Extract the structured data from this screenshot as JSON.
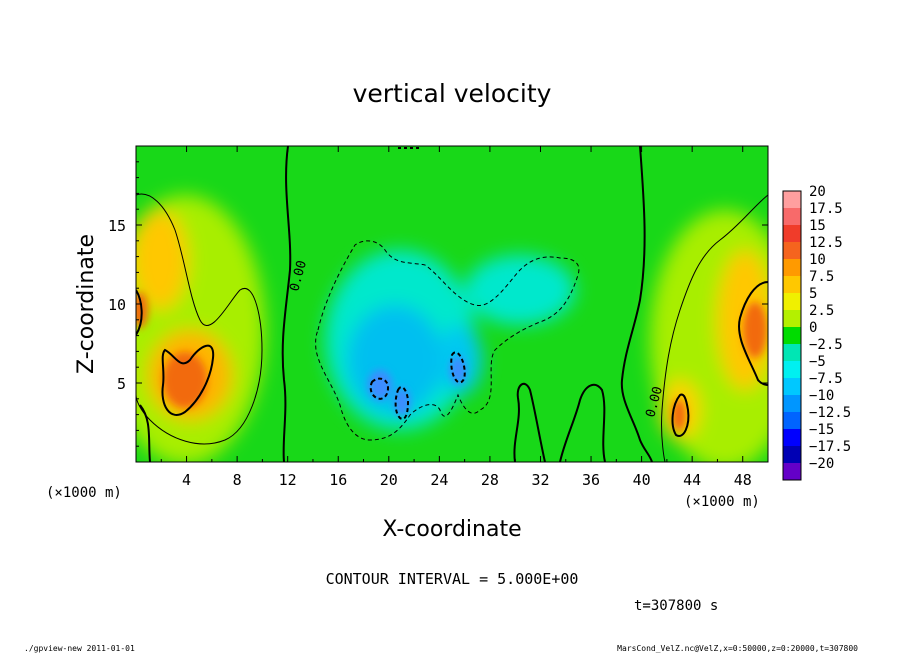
{
  "chart_data": {
    "type": "heatmap",
    "title": "vertical velocity",
    "xlabel": "X-coordinate",
    "ylabel": "Z-coordinate",
    "x_unit": "(×1000 m)",
    "y_unit": "(×1000 m)",
    "xlim": [
      0,
      50
    ],
    "ylim": [
      0,
      20
    ],
    "xticks": [
      4,
      8,
      12,
      16,
      20,
      24,
      28,
      32,
      36,
      40,
      44,
      48
    ],
    "yticks": [
      5,
      10,
      15
    ],
    "colorbar": {
      "levels": [
        "20",
        "17.5",
        "15",
        "12.5",
        "10",
        "7.5",
        "5",
        "2.5",
        "0",
        "−2.5",
        "−5",
        "−7.5",
        "−10",
        "−12.5",
        "−15",
        "−17.5",
        "−20"
      ],
      "colors": [
        "#ff9f9f",
        "#f86a6a",
        "#f03c2a",
        "#f5641e",
        "#ff9a00",
        "#ffc800",
        "#f0f000",
        "#b4f000",
        "#00dc00",
        "#00e6b4",
        "#00f0f0",
        "#00c8ff",
        "#0096ff",
        "#0064ff",
        "#0000ff",
        "#0000b4",
        "#6400c8"
      ]
    },
    "contour_labels": [
      "0.00",
      "0.00"
    ],
    "contour_interval_text": "CONTOUR INTERVAL = 5.000E+00",
    "time_text": "t=307800 s",
    "fields": [
      {
        "name": "updraft-left-lower",
        "center": [
          4.5,
          6
        ],
        "value": 12
      },
      {
        "name": "updraft-left-upper",
        "center": [
          1.5,
          13
        ],
        "value": 9
      },
      {
        "name": "updraft-right",
        "center": [
          48.5,
          8
        ],
        "value": 13
      },
      {
        "name": "updraft-right-lower",
        "center": [
          43,
          3
        ],
        "value": 11
      },
      {
        "name": "downdraft-center",
        "center": [
          21,
          6
        ],
        "value": -8
      },
      {
        "name": "downdraft-center-right",
        "center": [
          26,
          7
        ],
        "value": -6
      }
    ]
  },
  "footer": {
    "left": "./gpview-new  2011-01-01",
    "right": "MarsCond_VelZ.nc@VelZ,x=0:50000,z=0:20000,t=307800"
  }
}
